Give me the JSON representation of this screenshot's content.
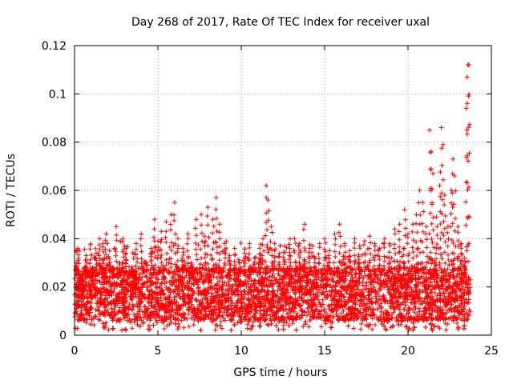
{
  "chart_data": {
    "type": "scatter",
    "title": "Day 268 of 2017, Rate Of TEC Index for receiver uxal",
    "xlabel": "GPS time / hours",
    "ylabel": "ROTI / TECUs",
    "xlim": [
      0,
      25
    ],
    "ylim": [
      0,
      0.12
    ],
    "x_ticks": [
      0,
      5,
      10,
      15,
      20,
      25
    ],
    "x_tick_labels": [
      "0",
      "5",
      "10",
      "15",
      "20",
      "25"
    ],
    "y_ticks": [
      0,
      0.02,
      0.04,
      0.06,
      0.08,
      0.1,
      0.12
    ],
    "y_tick_labels": [
      "0",
      "0.02",
      "0.04",
      "0.06",
      "0.08",
      "0.1",
      "0.12"
    ],
    "grid": true,
    "marker": "+",
    "colors": {
      "series": "#ff0000",
      "grid": "#a0a0a0",
      "axes": "#000000"
    },
    "series": [
      {
        "name": "ROTI",
        "points": [
          [
            0.1,
            0.03
          ],
          [
            0.2,
            0.036
          ],
          [
            0.3,
            0.022
          ],
          [
            0.5,
            0.018
          ],
          [
            0.7,
            0.033
          ],
          [
            0.9,
            0.026
          ],
          [
            1.1,
            0.028
          ],
          [
            1.3,
            0.034
          ],
          [
            1.5,
            0.04
          ],
          [
            1.7,
            0.038
          ],
          [
            1.9,
            0.042
          ],
          [
            2.1,
            0.035
          ],
          [
            2.3,
            0.028
          ],
          [
            2.5,
            0.045
          ],
          [
            2.7,
            0.03
          ],
          [
            2.9,
            0.04
          ],
          [
            3.1,
            0.036
          ],
          [
            3.4,
            0.025
          ],
          [
            3.7,
            0.038
          ],
          [
            4.0,
            0.042
          ],
          [
            4.3,
            0.03
          ],
          [
            4.6,
            0.036
          ],
          [
            4.8,
            0.048
          ],
          [
            5.0,
            0.039
          ],
          [
            5.2,
            0.043
          ],
          [
            5.5,
            0.047
          ],
          [
            5.8,
            0.05
          ],
          [
            6.0,
            0.055
          ],
          [
            6.2,
            0.04
          ],
          [
            6.5,
            0.036
          ],
          [
            6.8,
            0.042
          ],
          [
            7.0,
            0.03
          ],
          [
            7.3,
            0.048
          ],
          [
            7.6,
            0.05
          ],
          [
            7.8,
            0.041
          ],
          [
            8.0,
            0.053
          ],
          [
            8.3,
            0.048
          ],
          [
            8.5,
            0.057
          ],
          [
            8.7,
            0.046
          ],
          [
            9.0,
            0.038
          ],
          [
            9.3,
            0.033
          ],
          [
            9.6,
            0.036
          ],
          [
            9.9,
            0.03
          ],
          [
            10.2,
            0.034
          ],
          [
            10.5,
            0.038
          ],
          [
            10.8,
            0.032
          ],
          [
            11.1,
            0.036
          ],
          [
            11.3,
            0.04
          ],
          [
            11.5,
            0.062
          ],
          [
            11.6,
            0.056
          ],
          [
            11.8,
            0.045
          ],
          [
            12.0,
            0.038
          ],
          [
            12.3,
            0.034
          ],
          [
            12.6,
            0.037
          ],
          [
            12.9,
            0.036
          ],
          [
            13.2,
            0.04
          ],
          [
            13.5,
            0.038
          ],
          [
            13.8,
            0.046
          ],
          [
            14.1,
            0.036
          ],
          [
            14.4,
            0.032
          ],
          [
            14.7,
            0.038
          ],
          [
            15.0,
            0.04
          ],
          [
            15.3,
            0.035
          ],
          [
            15.6,
            0.042
          ],
          [
            15.9,
            0.046
          ],
          [
            16.2,
            0.038
          ],
          [
            16.5,
            0.035
          ],
          [
            16.8,
            0.04
          ],
          [
            17.1,
            0.037
          ],
          [
            17.4,
            0.039
          ],
          [
            17.7,
            0.041
          ],
          [
            18.0,
            0.038
          ],
          [
            18.3,
            0.036
          ],
          [
            18.6,
            0.04
          ],
          [
            18.9,
            0.038
          ],
          [
            19.2,
            0.044
          ],
          [
            19.5,
            0.046
          ],
          [
            19.8,
            0.052
          ],
          [
            20.0,
            0.042
          ],
          [
            20.3,
            0.046
          ],
          [
            20.5,
            0.05
          ],
          [
            20.7,
            0.06
          ],
          [
            20.9,
            0.055
          ],
          [
            21.1,
            0.045
          ],
          [
            21.3,
            0.085
          ],
          [
            21.4,
            0.076
          ],
          [
            21.5,
            0.067
          ],
          [
            21.7,
            0.049
          ],
          [
            21.9,
            0.062
          ],
          [
            22.0,
            0.086
          ],
          [
            22.1,
            0.079
          ],
          [
            22.2,
            0.058
          ],
          [
            22.4,
            0.045
          ],
          [
            22.6,
            0.06
          ],
          [
            22.7,
            0.073
          ],
          [
            22.8,
            0.066
          ],
          [
            23.0,
            0.045
          ],
          [
            23.2,
            0.038
          ],
          [
            23.4,
            0.032
          ],
          [
            23.5,
            0.094
          ],
          [
            23.55,
            0.107
          ],
          [
            23.6,
            0.112
          ],
          [
            23.65,
            0.112
          ]
        ]
      }
    ]
  }
}
